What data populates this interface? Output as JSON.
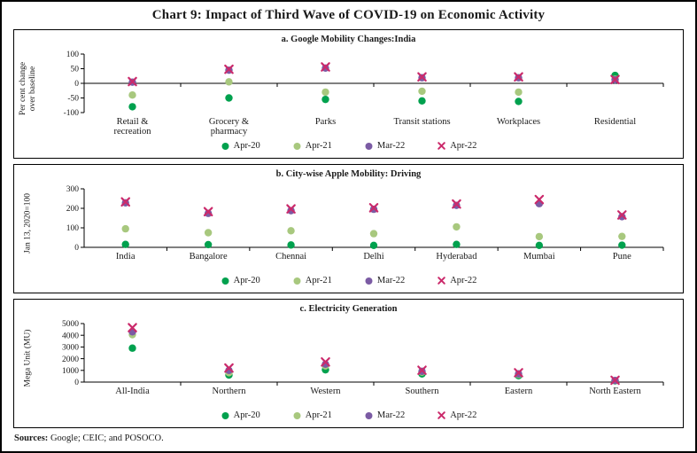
{
  "title": "Chart 9: Impact of Third Wave of COVID-19 on Economic Activity",
  "sources": {
    "label": "Sources:",
    "text": " Google; CEIC; and POSOCO."
  },
  "legend": {
    "items": [
      {
        "label": "Apr-20",
        "marker": "circle",
        "color": "#00A14E"
      },
      {
        "label": "Apr-21",
        "marker": "circle",
        "color": "#A8C87E"
      },
      {
        "label": "Mar-22",
        "marker": "circle",
        "color": "#7B5BA4"
      },
      {
        "label": "Apr-22",
        "marker": "x",
        "color": "#CB2A6B"
      }
    ]
  },
  "series_colors": {
    "Apr-20": "#00A14E",
    "Apr-21": "#A8C87E",
    "Mar-22": "#7B5BA4",
    "Apr-22": "#CB2A6B"
  },
  "chart_data": [
    {
      "id": "a",
      "type": "scatter",
      "title": "a. Google Mobility Changes:India",
      "ylabel": "Per cent change\nover baseline",
      "ylim": [
        -100,
        100
      ],
      "yticks": [
        100,
        50,
        0,
        -50,
        -100
      ],
      "axis_line_value": 0,
      "grid": false,
      "legend_position": "bottom",
      "categories": [
        "Retail &\nrecreation",
        "Grocery &\npharmacy",
        "Parks",
        "Transit stations",
        "Workplaces",
        "Residential"
      ],
      "series": [
        {
          "name": "Apr-20",
          "marker": "circle",
          "color": "#00A14E",
          "values": [
            -80,
            -50,
            -55,
            -60,
            -62,
            27
          ]
        },
        {
          "name": "Apr-21",
          "marker": "circle",
          "color": "#A8C87E",
          "values": [
            -40,
            5,
            -30,
            -27,
            -30,
            14
          ]
        },
        {
          "name": "Mar-22",
          "marker": "circle",
          "color": "#7B5BA4",
          "values": [
            4,
            45,
            52,
            19,
            19,
            12
          ]
        },
        {
          "name": "Apr-22",
          "marker": "x",
          "color": "#CB2A6B",
          "values": [
            6,
            48,
            56,
            22,
            22,
            13
          ]
        }
      ]
    },
    {
      "id": "b",
      "type": "scatter",
      "title": "b. City-wise Apple Mobility: Driving",
      "ylabel": "Jan 13, 2020=100",
      "ylim": [
        0,
        300
      ],
      "yticks": [
        300,
        200,
        100,
        0
      ],
      "axis_line_value": 0,
      "grid": false,
      "legend_position": "bottom",
      "categories": [
        "India",
        "Bangalore",
        "Chennai",
        "Delhi",
        "Hyderabad",
        "Mumbai",
        "Pune"
      ],
      "series": [
        {
          "name": "Apr-20",
          "marker": "circle",
          "color": "#00A14E",
          "values": [
            15,
            14,
            12,
            10,
            15,
            10,
            11
          ]
        },
        {
          "name": "Apr-21",
          "marker": "circle",
          "color": "#A8C87E",
          "values": [
            95,
            75,
            85,
            70,
            105,
            55,
            56
          ]
        },
        {
          "name": "Mar-22",
          "marker": "circle",
          "color": "#7B5BA4",
          "values": [
            228,
            174,
            188,
            195,
            215,
            224,
            157
          ]
        },
        {
          "name": "Apr-22",
          "marker": "x",
          "color": "#CB2A6B",
          "values": [
            233,
            183,
            197,
            203,
            222,
            245,
            166
          ]
        }
      ]
    },
    {
      "id": "c",
      "type": "scatter",
      "title": "c. Electricity Generation",
      "ylabel": "Mega Unit (MU)",
      "ylim": [
        0,
        5000
      ],
      "yticks": [
        5000,
        4000,
        3000,
        2000,
        1000,
        0
      ],
      "axis_line_value": 0,
      "grid": false,
      "legend_position": "bottom",
      "categories": [
        "All-India",
        "Northern",
        "Western",
        "Southern",
        "Eastern",
        "North Eastern"
      ],
      "series": [
        {
          "name": "Apr-20",
          "marker": "circle",
          "color": "#00A14E",
          "values": [
            2900,
            600,
            1050,
            700,
            550,
            100
          ]
        },
        {
          "name": "Apr-21",
          "marker": "circle",
          "color": "#A8C87E",
          "values": [
            4050,
            800,
            1380,
            850,
            640,
            120
          ]
        },
        {
          "name": "Mar-22",
          "marker": "circle",
          "color": "#7B5BA4",
          "values": [
            4300,
            1000,
            1530,
            920,
            700,
            140
          ]
        },
        {
          "name": "Apr-22",
          "marker": "x",
          "color": "#CB2A6B",
          "values": [
            4650,
            1200,
            1720,
            1010,
            800,
            155
          ]
        }
      ]
    }
  ]
}
